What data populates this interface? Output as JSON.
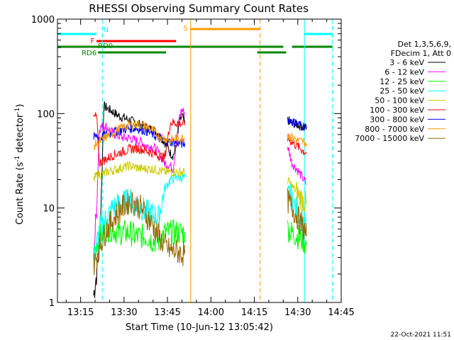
{
  "chart_data": {
    "type": "line",
    "title": "RHESSI Observing Summary Count Rates",
    "xlabel": "Start Time (10-Jun-12 13:05:42)",
    "ylabel_main": "Count Rate (s",
    "ylabel_sup1": "-1",
    "ylabel_mid": " detector",
    "ylabel_sup2": "-1",
    "ylabel_end": ")",
    "yscale": "log",
    "ylim": [
      1,
      1000
    ],
    "xlim_minutes_after_13_00": [
      7.0,
      105.0
    ],
    "x_ticks": [
      {
        "label": "13:15",
        "t": 15
      },
      {
        "label": "13:30",
        "t": 30
      },
      {
        "label": "13:45",
        "t": 45
      },
      {
        "label": "14:00",
        "t": 60
      },
      {
        "label": "14:15",
        "t": 75
      },
      {
        "label": "14:30",
        "t": 90
      },
      {
        "label": "14:45",
        "t": 105
      }
    ],
    "y_ticks": [
      {
        "label": "1",
        "v": 1
      },
      {
        "label": "10",
        "v": 10
      },
      {
        "label": "100",
        "v": 100
      },
      {
        "label": "1000",
        "v": 1000
      }
    ],
    "legend": {
      "header": [
        "Det 1,3,5,6,9,",
        "FDecim 1, Att 0"
      ],
      "placement": "right"
    },
    "series": [
      {
        "name": "3 - 6 keV",
        "color": "#000000",
        "segments": [
          [
            [
              19.5,
              1.2
            ],
            [
              20.5,
              2
            ],
            [
              21.5,
              4
            ],
            [
              22.5,
              30
            ],
            [
              23,
              120
            ],
            [
              24,
              115
            ],
            [
              26,
              105
            ],
            [
              28,
              95
            ],
            [
              30,
              90
            ],
            [
              32,
              85
            ],
            [
              34,
              80
            ],
            [
              36,
              75
            ],
            [
              38,
              70
            ],
            [
              40,
              68
            ],
            [
              42,
              60
            ],
            [
              44,
              50
            ],
            [
              45,
              45
            ],
            [
              46,
              38
            ],
            [
              47,
              36
            ],
            [
              48,
              45
            ],
            [
              49,
              75
            ],
            [
              50,
              95
            ],
            [
              51,
              80
            ]
          ],
          [
            [
              86.5,
              85
            ],
            [
              88,
              80
            ],
            [
              90,
              76
            ],
            [
              92,
              72
            ],
            [
              93,
              70
            ]
          ]
        ]
      },
      {
        "name": "6 - 12 keV",
        "color": "#ff00ff",
        "segments": [
          [
            [
              19.5,
              3
            ],
            [
              20.5,
              10
            ],
            [
              21.5,
              70
            ],
            [
              23,
              75
            ],
            [
              24,
              72
            ],
            [
              26,
              63
            ],
            [
              28,
              58
            ],
            [
              30,
              55
            ],
            [
              32,
              55
            ],
            [
              34,
              52
            ],
            [
              36,
              50
            ],
            [
              38,
              45
            ],
            [
              40,
              45
            ],
            [
              42,
              38
            ],
            [
              44,
              30
            ],
            [
              46,
              28
            ],
            [
              47,
              26
            ],
            [
              48,
              50
            ],
            [
              49,
              90
            ],
            [
              50,
              110
            ],
            [
              51,
              100
            ]
          ],
          [
            [
              86.5,
              45
            ],
            [
              88,
              30
            ],
            [
              90,
              25
            ],
            [
              92,
              20
            ],
            [
              93,
              18
            ]
          ]
        ]
      },
      {
        "name": "12 - 25 keV",
        "color": "#00ff00",
        "segments": [
          [
            [
              19.5,
              3
            ],
            [
              20.5,
              4
            ],
            [
              21.5,
              5
            ],
            [
              23,
              5.5
            ],
            [
              24,
              6
            ],
            [
              26,
              6
            ],
            [
              28,
              5.5
            ],
            [
              30,
              5.5
            ],
            [
              32,
              5.5
            ],
            [
              34,
              5
            ],
            [
              36,
              5
            ],
            [
              38,
              5
            ],
            [
              40,
              4.5
            ],
            [
              42,
              4.5
            ],
            [
              44,
              5.5
            ],
            [
              46,
              5.5
            ],
            [
              48,
              5.5
            ],
            [
              50,
              5.5
            ],
            [
              51,
              5.5
            ]
          ],
          [
            [
              86.5,
              6
            ],
            [
              88,
              5.5
            ],
            [
              90,
              5
            ],
            [
              92,
              4.5
            ],
            [
              93,
              4
            ]
          ]
        ]
      },
      {
        "name": "25 - 50 keV",
        "color": "#00ffff",
        "segments": [
          [
            [
              19.5,
              3
            ],
            [
              20.5,
              4
            ],
            [
              21.5,
              6
            ],
            [
              23,
              7
            ],
            [
              24,
              8
            ],
            [
              26,
              10
            ],
            [
              28,
              11
            ],
            [
              30,
              11.5
            ],
            [
              32,
              12
            ],
            [
              34,
              11
            ],
            [
              36,
              10
            ],
            [
              38,
              9
            ],
            [
              40,
              8.5
            ],
            [
              42,
              8
            ],
            [
              44,
              16
            ],
            [
              46,
              20
            ],
            [
              48,
              21
            ],
            [
              50,
              21
            ],
            [
              51,
              21
            ]
          ],
          [
            [
              86.5,
              16
            ],
            [
              88,
              12
            ],
            [
              90,
              9
            ],
            [
              92,
              7
            ],
            [
              93,
              6
            ]
          ]
        ]
      },
      {
        "name": "50 - 100 keV",
        "color": "#cccc00",
        "segments": [
          [
            [
              19.5,
              20
            ],
            [
              20.5,
              22
            ],
            [
              21.5,
              23
            ],
            [
              23,
              23
            ],
            [
              24,
              24
            ],
            [
              26,
              25
            ],
            [
              28,
              26
            ],
            [
              30,
              27
            ],
            [
              32,
              28
            ],
            [
              34,
              27
            ],
            [
              36,
              26
            ],
            [
              38,
              26
            ],
            [
              40,
              26
            ],
            [
              42,
              25
            ],
            [
              44,
              24
            ],
            [
              46,
              24
            ],
            [
              48,
              24
            ],
            [
              51,
              24
            ]
          ],
          [
            [
              86.5,
              20
            ],
            [
              88,
              17
            ],
            [
              90,
              14
            ],
            [
              92,
              12
            ],
            [
              93,
              11
            ]
          ]
        ]
      },
      {
        "name": "100 - 300 keV",
        "color": "#ff0000",
        "segments": [
          [
            [
              19.5,
              90
            ],
            [
              20.5,
              95
            ],
            [
              21.5,
              30
            ],
            [
              23,
              32
            ],
            [
              24,
              33
            ],
            [
              26,
              36
            ],
            [
              28,
              38
            ],
            [
              30,
              40
            ],
            [
              32,
              42
            ],
            [
              34,
              43
            ],
            [
              36,
              42
            ],
            [
              38,
              40
            ],
            [
              40,
              38
            ],
            [
              42,
              36
            ],
            [
              44,
              34
            ],
            [
              46,
              80
            ],
            [
              48,
              80
            ],
            [
              50,
              78
            ],
            [
              51,
              78
            ]
          ],
          [
            [
              86.5,
              55
            ],
            [
              88,
              50
            ],
            [
              90,
              45
            ],
            [
              92,
              40
            ],
            [
              93,
              38
            ]
          ]
        ]
      },
      {
        "name": "300 - 800 keV",
        "color": "#0000ff",
        "segments": [
          [
            [
              19.5,
              55
            ],
            [
              20.5,
              58
            ],
            [
              21.5,
              55
            ],
            [
              23,
              58
            ],
            [
              24,
              60
            ],
            [
              26,
              63
            ],
            [
              28,
              66
            ],
            [
              30,
              68
            ],
            [
              32,
              70
            ],
            [
              34,
              70
            ],
            [
              36,
              68
            ],
            [
              38,
              65
            ],
            [
              40,
              60
            ],
            [
              42,
              55
            ],
            [
              44,
              52
            ],
            [
              46,
              50
            ],
            [
              48,
              50
            ],
            [
              50,
              48
            ],
            [
              51,
              48
            ]
          ],
          [
            [
              86.5,
              88
            ],
            [
              88,
              82
            ],
            [
              90,
              78
            ],
            [
              92,
              74
            ],
            [
              93,
              70
            ]
          ]
        ]
      },
      {
        "name": "800 - 7000 keV",
        "color": "#ff9900",
        "segments": [
          [
            [
              19.5,
              45
            ],
            [
              20.5,
              48
            ],
            [
              21.5,
              50
            ],
            [
              23,
              55
            ],
            [
              24,
              57
            ],
            [
              26,
              62
            ],
            [
              28,
              68
            ],
            [
              30,
              72
            ],
            [
              32,
              76
            ],
            [
              34,
              78
            ],
            [
              36,
              76
            ],
            [
              38,
              72
            ],
            [
              40,
              66
            ],
            [
              42,
              58
            ],
            [
              44,
              55
            ],
            [
              46,
              52
            ],
            [
              48,
              55
            ],
            [
              50,
              55
            ],
            [
              51,
              55
            ]
          ],
          [
            [
              86.5,
              60
            ],
            [
              88,
              56
            ],
            [
              90,
              52
            ],
            [
              92,
              50
            ],
            [
              93,
              48
            ]
          ]
        ]
      },
      {
        "name": "7000 - 15000 keV",
        "color": "#996600",
        "segments": [
          [
            [
              19.5,
              2.5
            ],
            [
              20.5,
              3
            ],
            [
              21.5,
              4
            ],
            [
              23,
              5
            ],
            [
              24,
              6
            ],
            [
              26,
              7.5
            ],
            [
              28,
              9
            ],
            [
              30,
              10.5
            ],
            [
              32,
              12
            ],
            [
              34,
              11
            ],
            [
              36,
              10
            ],
            [
              38,
              8
            ],
            [
              40,
              6.5
            ],
            [
              42,
              5
            ],
            [
              44,
              4
            ],
            [
              46,
              3.5
            ],
            [
              48,
              3.5
            ],
            [
              50,
              3.3
            ],
            [
              51,
              3.3
            ]
          ],
          [
            [
              86.5,
              12
            ],
            [
              88,
              10
            ],
            [
              90,
              8
            ],
            [
              92,
              6
            ],
            [
              93,
              5
            ]
          ]
        ]
      }
    ],
    "flag_bars": [
      {
        "label": "N",
        "color": "#00ffff",
        "segments": [
          [
            7,
            20.5
          ],
          [
            92.3,
            102
          ]
        ],
        "level": 0
      },
      {
        "label": "F",
        "color": "#ff0000",
        "segments": [
          [
            20.5,
            48
          ]
        ],
        "level": 1
      },
      {
        "label": "RD0",
        "color": "#008800",
        "segments": [
          [
            7,
            44.5
          ],
          [
            44.5,
            76
          ],
          [
            76,
            85
          ],
          [
            88,
            102
          ]
        ],
        "level": 2
      },
      {
        "label": "RD6",
        "color": "#008800",
        "segments": [
          [
            21,
            44.5
          ],
          [
            76,
            86
          ]
        ],
        "level": 3
      },
      {
        "label": "S",
        "color": "#ff9900",
        "segments": [
          [
            53,
            77
          ]
        ],
        "level": 4
      }
    ],
    "vlines": [
      {
        "t": 7.0,
        "color": "#00ffff",
        "style": "solid"
      },
      {
        "t": 22.5,
        "color": "#00ffff",
        "style": "dashed"
      },
      {
        "t": 53.0,
        "color": "#ff9900",
        "style": "solid"
      },
      {
        "t": 77.0,
        "color": "#ff9900",
        "style": "dashed"
      },
      {
        "t": 92.3,
        "color": "#00ffff",
        "style": "solid"
      },
      {
        "t": 102.0,
        "color": "#00ffff",
        "style": "dashed"
      }
    ]
  },
  "footer_date": "22-Oct-2021 11:51"
}
